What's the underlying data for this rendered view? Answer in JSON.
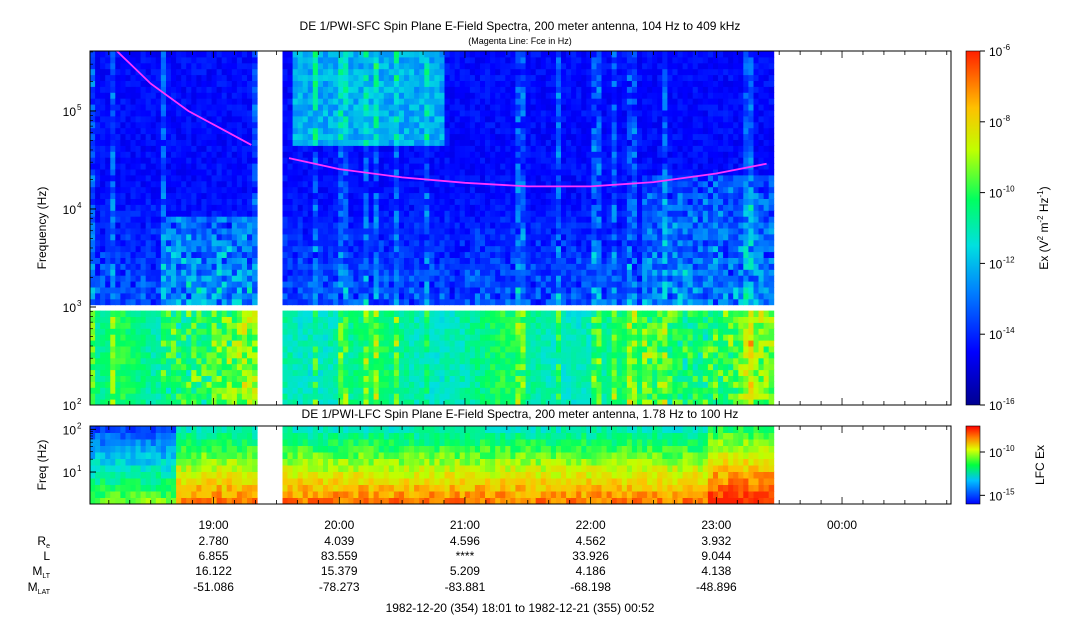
{
  "chart_data": [
    {
      "type": "heatmap",
      "title": "DE 1/PWI-SFC  Spin Plane E-Field Spectra, 200 meter antenna, 104 Hz to 409 kHz",
      "subtitle": "(Magenta Line: Fce in Hz)",
      "ylabel": "Frequency (Hz)",
      "yscale": "log",
      "ylim": [
        100,
        409000
      ],
      "yticks": [
        {
          "value": 100,
          "label": "10",
          "sup": "2"
        },
        {
          "value": 1000,
          "label": "10",
          "sup": "3"
        },
        {
          "value": 10000,
          "label": "10",
          "sup": "4"
        },
        {
          "value": 100000,
          "label": "10",
          "sup": "5"
        }
      ],
      "colorbar": {
        "label": "Ex (V",
        "label_sup1": "2",
        "label_mid": " m",
        "label_sup2": "-2",
        "label_mid2": " Hz",
        "label_sup3": "-1",
        "label_end": ")",
        "scale": "log",
        "range": [
          1e-16,
          1e-06
        ],
        "ticks": [
          {
            "value": 1e-06,
            "label": "10",
            "sup": "-6"
          },
          {
            "value": 1e-08,
            "label": "10",
            "sup": "-8"
          },
          {
            "value": 1e-10,
            "label": "10",
            "sup": "-10"
          },
          {
            "value": 1e-12,
            "label": "10",
            "sup": "-12"
          },
          {
            "value": 1e-14,
            "label": "10",
            "sup": "-14"
          },
          {
            "value": 1e-16,
            "label": "10",
            "sup": "-16"
          }
        ]
      },
      "data_gaps_utc_hours": [
        [
          19.35,
          19.55
        ],
        [
          23.45,
          24.867
        ]
      ],
      "fce_line": {
        "name": "Fce",
        "color": "#ff33ff",
        "segments": [
          [
            [
              18.23,
              409000
            ],
            [
              18.5,
              190000
            ],
            [
              18.8,
              100000
            ],
            [
              19.1,
              62000
            ],
            [
              19.3,
              45000
            ]
          ],
          [
            [
              19.6,
              33000
            ],
            [
              20.0,
              25500
            ],
            [
              20.5,
              21000
            ],
            [
              21.0,
              18500
            ],
            [
              21.5,
              17000
            ],
            [
              22.0,
              17000
            ],
            [
              22.5,
              18800
            ],
            [
              23.0,
              23000
            ],
            [
              23.4,
              29000
            ]
          ]
        ]
      }
    },
    {
      "type": "heatmap",
      "title": "DE 1/PWI-LFC  Spin Plane E-Field Spectra, 200 meter antenna, 1.78 Hz to 100 Hz",
      "ylabel": "Freq (Hz)",
      "yscale": "log",
      "ylim": [
        1.78,
        120
      ],
      "yticks": [
        {
          "value": 10,
          "label": "10",
          "sup": "1"
        },
        {
          "value": 100,
          "label": "10",
          "sup": "2"
        }
      ],
      "colorbar": {
        "label": "LFC Ex",
        "scale": "log",
        "range": [
          1e-16,
          1e-07
        ],
        "ticks": [
          {
            "value": 1e-10,
            "label": "10",
            "sup": "-10"
          },
          {
            "value": 1e-15,
            "label": "10",
            "sup": "-15"
          }
        ]
      },
      "data_gaps_utc_hours": [
        [
          19.35,
          19.55
        ],
        [
          23.45,
          24.867
        ]
      ]
    }
  ],
  "xaxis": {
    "range_utc_hours": [
      18.017,
      24.867
    ],
    "ticks": [
      {
        "value": 19,
        "label": "19:00"
      },
      {
        "value": 20,
        "label": "20:00"
      },
      {
        "value": 21,
        "label": "21:00"
      },
      {
        "value": 22,
        "label": "22:00"
      },
      {
        "value": 23,
        "label": "23:00"
      },
      {
        "value": 24,
        "label": "00:00"
      }
    ]
  },
  "ephemeris": {
    "rows": [
      {
        "name": "R",
        "sub": "e",
        "values": [
          "2.780",
          "4.039",
          "4.596",
          "4.562",
          "3.932"
        ]
      },
      {
        "name": "L",
        "sub": "",
        "values": [
          "6.855",
          "83.559",
          "****",
          "33.926",
          "9.044"
        ]
      },
      {
        "name": "M",
        "sub": "LT",
        "values": [
          "16.122",
          "15.379",
          "5.209",
          "4.186",
          "4.138"
        ]
      },
      {
        "name": "M",
        "sub": "LAT",
        "values": [
          "-51.086",
          "-78.273",
          "-83.881",
          "-68.198",
          "-48.896"
        ]
      }
    ]
  },
  "time_range": "1982-12-20 (354) 18:01 to 1982-12-21 (355) 00:52"
}
